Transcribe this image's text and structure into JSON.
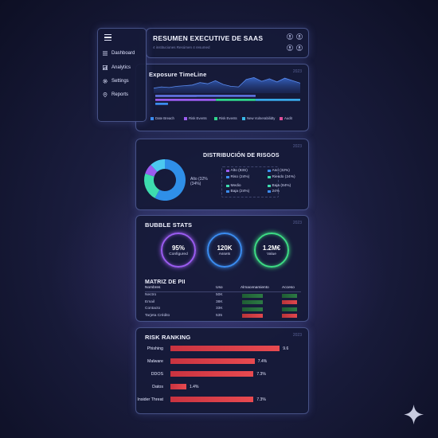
{
  "sidebar": {
    "items": [
      {
        "label": "Dashboard",
        "icon": "list-icon"
      },
      {
        "label": "Analytics",
        "icon": "bar-chart-icon"
      },
      {
        "label": "Settings",
        "icon": "gear-icon"
      },
      {
        "label": "Reports",
        "icon": "pin-icon"
      }
    ]
  },
  "header": {
    "title": "RESUMEN EXECUTIVE DE SAAS",
    "subtitle": "4 instituciones Resúmen 4 resumed"
  },
  "timeline": {
    "title": "Exposure TimeLine",
    "tag": "2023"
  },
  "distribution": {
    "title": "DISTRIBUCIÓN DE RISGOS",
    "tag": "2023",
    "center_label": "Alto (32% (34%)"
  },
  "bubble_stats": {
    "title": "BUBBLE STATS",
    "tag": "2023",
    "bubbles": [
      {
        "value": "95%",
        "label": "Configured",
        "color": "#9b5cf0"
      },
      {
        "value": "120K",
        "label": "Assets",
        "color": "#3b8cf0"
      },
      {
        "value": "1.2M€",
        "label": "Value",
        "color": "#3ddc84"
      }
    ]
  },
  "matriz": {
    "title": "MATRIZ DE PII",
    "headers": [
      "Nombres",
      "Uso",
      "Almacenamiento",
      "Acceso"
    ],
    "rows": [
      {
        "name": "Nectro",
        "uso": "50K",
        "alm": "green",
        "acc": "green"
      },
      {
        "name": "Email",
        "uso": "38K",
        "alm": "green",
        "acc": "red"
      },
      {
        "name": "Contacto",
        "uso": "33K",
        "alm": "green",
        "acc": "green"
      },
      {
        "name": "Tarjeta Crédito",
        "uso": "535",
        "alm": "red",
        "acc": "red"
      }
    ]
  },
  "risk_ranking": {
    "title": "RISK RANKING",
    "tag": "2023"
  },
  "chart_data": [
    {
      "type": "area",
      "title": "Exposure TimeLine",
      "x": [
        1,
        2,
        3,
        4,
        5,
        6,
        7,
        8,
        9,
        10,
        11,
        12,
        13,
        14,
        15,
        16,
        17,
        18,
        19,
        20
      ],
      "series": [
        {
          "values": [
            8,
            10,
            9,
            11,
            12,
            13,
            17,
            15,
            20,
            14,
            11,
            10,
            22,
            25,
            19,
            23,
            18,
            24,
            20,
            16
          ]
        }
      ],
      "bars": [
        {
          "name": "Date Breach",
          "color": "#3b8cf0"
        },
        {
          "name": "Risk Events",
          "color": "#9b5cf0"
        },
        {
          "name": "Risk Events",
          "color": "#2fd68c"
        },
        {
          "name": "New Vulnerabilidty",
          "color": "#38b8e8"
        },
        {
          "name": "Audit",
          "color": "#e04f9a"
        }
      ]
    },
    {
      "type": "pie",
      "title": "DISTRIBUCIÓN DE RISGOS",
      "slices": [
        {
          "value": 58,
          "color": "#2f8fe8"
        },
        {
          "value": 22,
          "color": "#3ddcae"
        },
        {
          "value": 8,
          "color": "#9b5cf0"
        },
        {
          "value": 12,
          "color": "#4cc9f0"
        }
      ],
      "legend": [
        {
          "label": "Alto (83S)",
          "color": "#9b5cf0"
        },
        {
          "label": "Riso (24%)",
          "color": "#3b8cf0"
        },
        {
          "label": "Aso (32%)",
          "color": "#3b8cf0"
        },
        {
          "label": "Riesdo (24%)",
          "color": "#3ddcae"
        },
        {
          "label": "Medio",
          "color": "#3ddcae"
        },
        {
          "label": "Baja (24%)",
          "color": "#3b8cf0"
        },
        {
          "label": "Baja (84%)",
          "color": "#3ddcae"
        },
        {
          "label": "24%",
          "color": "#3b8cf0"
        }
      ]
    },
    {
      "type": "bar",
      "title": "RISK RANKING",
      "categories": [
        "Phishing",
        "Malware",
        "DDOS",
        "Datos",
        "Insider Threat"
      ],
      "values": [
        9.6,
        7.4,
        7.3,
        1.4,
        7.3
      ],
      "labels": [
        "9.6",
        "7.4%",
        "7.3%",
        "1.4%",
        "7.3%"
      ],
      "xlim": [
        0,
        10
      ]
    }
  ]
}
